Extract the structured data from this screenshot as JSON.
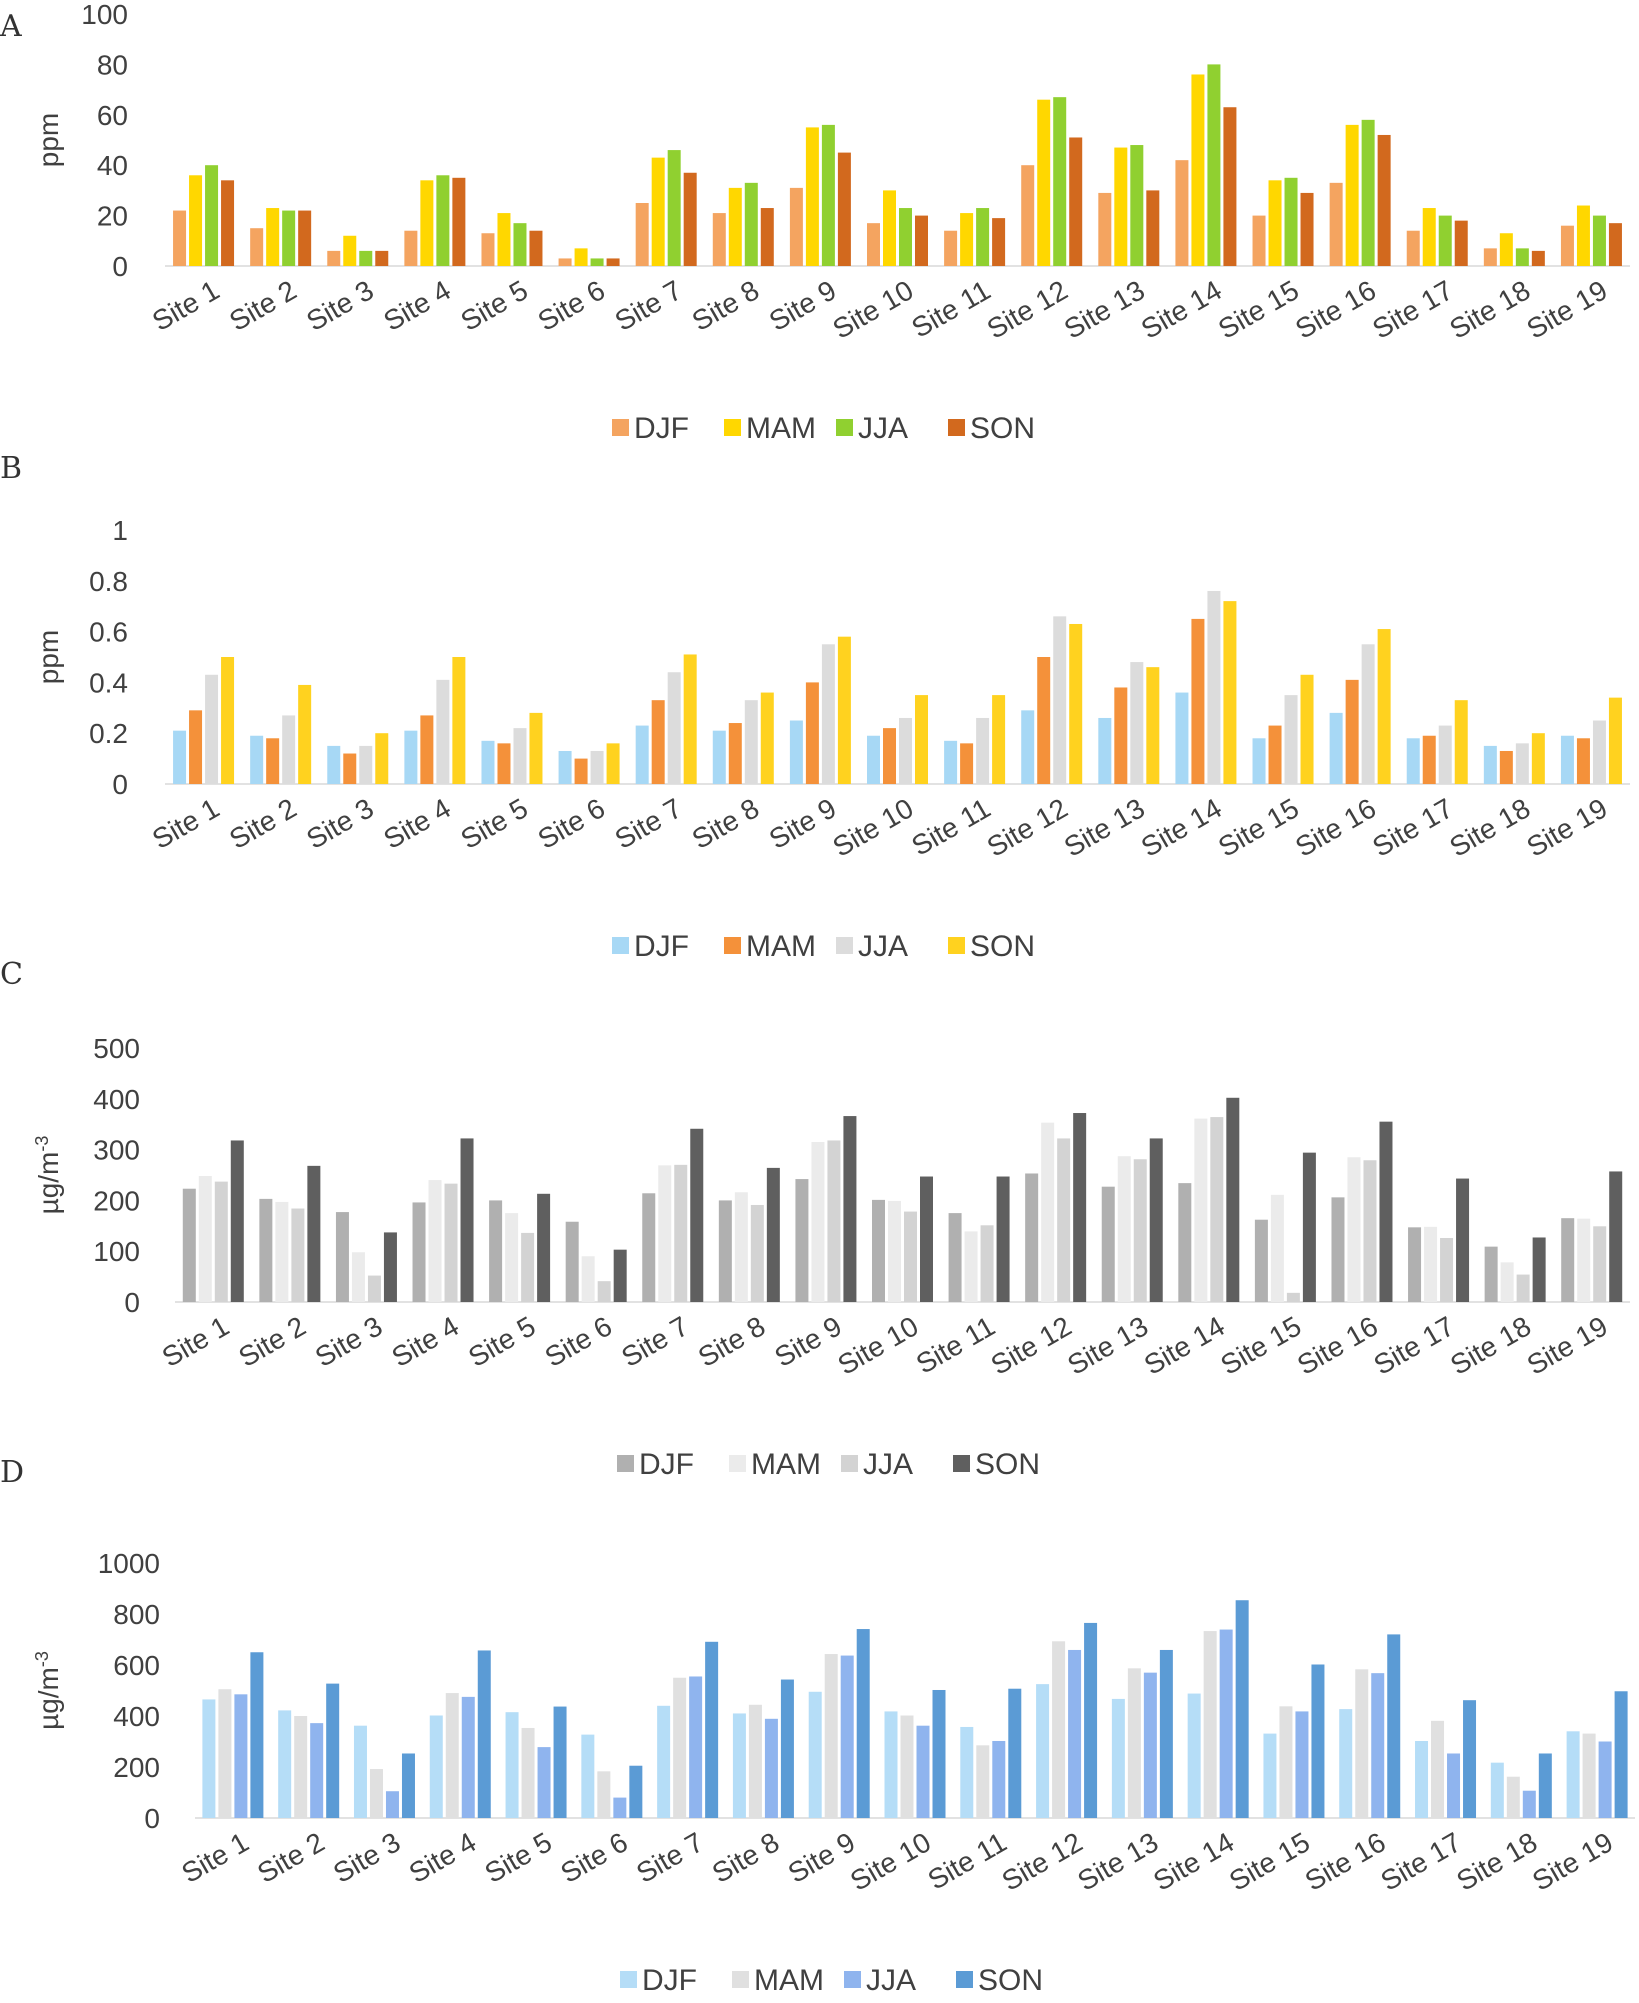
{
  "chart_data": [
    {
      "type": "bar",
      "panel": "A",
      "title": "",
      "xlabel": "",
      "ylabel": "ppm",
      "ylim": [
        0,
        100
      ],
      "yticks": [
        "0",
        "20",
        "40",
        "60",
        "80",
        "100"
      ],
      "legend_position": "bottom",
      "categories": [
        "Site 1",
        "Site 2",
        "Site 3",
        "Site 4",
        "Site 5",
        "Site 6",
        "Site 7",
        "Site 8",
        "Site 9",
        "Site 10",
        "Site 11",
        "Site 12",
        "Site 13",
        "Site 14",
        "Site 15",
        "Site 16",
        "Site 17",
        "Site 18",
        "Site 19"
      ],
      "series": [
        {
          "name": "DJF",
          "color": "#F4A460",
          "values": [
            22,
            15,
            6,
            14,
            13,
            3,
            25,
            21,
            31,
            17,
            14,
            40,
            29,
            42,
            20,
            33,
            14,
            7,
            16
          ]
        },
        {
          "name": "MAM",
          "color": "#FFD700",
          "values": [
            36,
            23,
            12,
            34,
            21,
            7,
            43,
            31,
            55,
            30,
            21,
            66,
            47,
            76,
            34,
            56,
            23,
            13,
            24
          ]
        },
        {
          "name": "JJA",
          "color": "#90D030",
          "values": [
            40,
            22,
            6,
            36,
            17,
            3,
            46,
            33,
            56,
            23,
            23,
            67,
            48,
            80,
            35,
            58,
            20,
            7,
            20
          ]
        },
        {
          "name": "SON",
          "color": "#D2691E",
          "values": [
            34,
            22,
            6,
            35,
            14,
            3,
            37,
            23,
            45,
            20,
            19,
            51,
            30,
            63,
            29,
            52,
            18,
            6,
            17
          ]
        }
      ]
    },
    {
      "type": "bar",
      "panel": "B",
      "title": "",
      "xlabel": "",
      "ylabel": "ppm",
      "ylim": [
        0,
        1
      ],
      "yticks": [
        "0",
        "0.2",
        "0.4",
        "0.6",
        "0.8",
        "1"
      ],
      "legend_position": "bottom",
      "categories": [
        "Site 1",
        "Site 2",
        "Site 3",
        "Site 4",
        "Site 5",
        "Site 6",
        "Site 7",
        "Site 8",
        "Site 9",
        "Site 10",
        "Site 11",
        "Site 12",
        "Site 13",
        "Site 14",
        "Site 15",
        "Site 16",
        "Site 17",
        "Site 18",
        "Site 19"
      ],
      "series": [
        {
          "name": "DJF",
          "color": "#A7D8F5",
          "values": [
            0.21,
            0.19,
            0.15,
            0.21,
            0.17,
            0.13,
            0.23,
            0.21,
            0.25,
            0.19,
            0.17,
            0.29,
            0.26,
            0.36,
            0.18,
            0.28,
            0.18,
            0.15,
            0.19
          ]
        },
        {
          "name": "MAM",
          "color": "#F4913A",
          "values": [
            0.29,
            0.18,
            0.12,
            0.27,
            0.16,
            0.1,
            0.33,
            0.24,
            0.4,
            0.22,
            0.16,
            0.5,
            0.38,
            0.65,
            0.23,
            0.41,
            0.19,
            0.13,
            0.18
          ]
        },
        {
          "name": "JJA",
          "color": "#DCDCDC",
          "values": [
            0.43,
            0.27,
            0.15,
            0.41,
            0.22,
            0.13,
            0.44,
            0.33,
            0.55,
            0.26,
            0.26,
            0.66,
            0.48,
            0.76,
            0.35,
            0.55,
            0.23,
            0.16,
            0.25
          ]
        },
        {
          "name": "SON",
          "color": "#FFD21F",
          "values": [
            0.5,
            0.39,
            0.2,
            0.5,
            0.28,
            0.16,
            0.51,
            0.36,
            0.58,
            0.35,
            0.35,
            0.63,
            0.46,
            0.72,
            0.43,
            0.61,
            0.33,
            0.2,
            0.34
          ]
        }
      ]
    },
    {
      "type": "bar",
      "panel": "C",
      "title": "",
      "xlabel": "",
      "ylabel": "µg/m",
      "ylabel_superscript": "-3",
      "ylim": [
        0,
        500
      ],
      "yticks": [
        "0",
        "100",
        "200",
        "300",
        "400",
        "500"
      ],
      "legend_position": "bottom",
      "categories": [
        "Site 1",
        "Site 2",
        "Site 3",
        "Site 4",
        "Site 5",
        "Site 6",
        "Site 7",
        "Site 8",
        "Site 9",
        "Site 10",
        "Site 11",
        "Site 12",
        "Site 13",
        "Site 14",
        "Site 15",
        "Site 16",
        "Site 17",
        "Site 18",
        "Site 19"
      ],
      "series": [
        {
          "name": "DJF",
          "color": "#B0B0B0",
          "values": [
            223,
            203,
            177,
            196,
            200,
            158,
            214,
            200,
            242,
            201,
            175,
            253,
            227,
            234,
            162,
            206,
            147,
            109,
            165
          ]
        },
        {
          "name": "MAM",
          "color": "#EBEBEB",
          "values": [
            248,
            197,
            98,
            240,
            175,
            90,
            269,
            216,
            315,
            199,
            139,
            353,
            287,
            361,
            211,
            285,
            148,
            78,
            164
          ]
        },
        {
          "name": "JJA",
          "color": "#D3D3D3",
          "values": [
            237,
            184,
            52,
            233,
            136,
            41,
            270,
            191,
            318,
            178,
            151,
            322,
            281,
            364,
            18,
            279,
            126,
            54,
            149
          ]
        },
        {
          "name": "SON",
          "color": "#5F5F5F",
          "values": [
            318,
            268,
            137,
            322,
            213,
            103,
            341,
            264,
            366,
            247,
            247,
            372,
            322,
            402,
            294,
            355,
            243,
            127,
            257
          ]
        }
      ]
    },
    {
      "type": "bar",
      "panel": "D",
      "title": "",
      "xlabel": "",
      "ylabel": "µg/m",
      "ylabel_superscript": "-3",
      "ylim": [
        0,
        1000
      ],
      "yticks": [
        "0",
        "200",
        "400",
        "600",
        "800",
        "1000"
      ],
      "legend_position": "bottom",
      "categories": [
        "Site 1",
        "Site 2",
        "Site 3",
        "Site 4",
        "Site 5",
        "Site 6",
        "Site 7",
        "Site 8",
        "Site 9",
        "Site 10",
        "Site 11",
        "Site 12",
        "Site 13",
        "Site 14",
        "Site 15",
        "Site 16",
        "Site 17",
        "Site 18",
        "Site 19"
      ],
      "series": [
        {
          "name": "DJF",
          "color": "#B5DDF7",
          "values": [
            465,
            422,
            362,
            402,
            415,
            327,
            440,
            410,
            495,
            418,
            357,
            525,
            467,
            488,
            331,
            427,
            302,
            217,
            340
          ]
        },
        {
          "name": "MAM",
          "color": "#E0E0E0",
          "values": [
            505,
            400,
            192,
            490,
            353,
            183,
            550,
            444,
            643,
            402,
            285,
            693,
            587,
            733,
            438,
            583,
            381,
            162,
            331
          ]
        },
        {
          "name": "JJA",
          "color": "#8FB4EE",
          "values": [
            485,
            372,
            105,
            475,
            278,
            80,
            555,
            389,
            637,
            362,
            302,
            659,
            570,
            739,
            418,
            568,
            253,
            107,
            300
          ]
        },
        {
          "name": "SON",
          "color": "#5B9BD5",
          "values": [
            650,
            527,
            253,
            657,
            437,
            205,
            691,
            543,
            741,
            502,
            507,
            765,
            659,
            854,
            602,
            720,
            462,
            253,
            497
          ]
        }
      ]
    }
  ],
  "panels": [
    "A",
    "B",
    "C",
    "D"
  ]
}
